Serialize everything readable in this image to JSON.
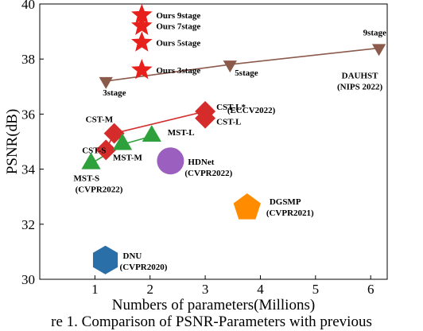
{
  "caption": "re 1. Comparison of PSNR-Parameters with previous",
  "chart_data": {
    "type": "scatter",
    "xlabel": "Numbers of parameters(Millions)",
    "ylabel": "PSNR(dB)",
    "xlim": [
      0,
      6.3
    ],
    "ylim": [
      30,
      40
    ],
    "xticks": [
      1,
      2,
      3,
      4,
      5,
      6
    ],
    "yticks": [
      30,
      32,
      34,
      36,
      38,
      40
    ],
    "grid": false,
    "colors": {
      "ours": "#e8201c",
      "dauhst": "#8b5a4b",
      "cst": "#d62b2b",
      "mst": "#2fa13c",
      "hdnet": "#9b5fc0",
      "dgsmp": "#ff8c00",
      "dnu": "#2a6fa8"
    },
    "series": [
      {
        "name": "Ours",
        "marker": "star",
        "color_key": "ours",
        "points": [
          {
            "x": 1.85,
            "y": 37.6,
            "label": "Ours 3stage"
          },
          {
            "x": 1.85,
            "y": 38.6,
            "label": "Ours 5stage"
          },
          {
            "x": 1.85,
            "y": 39.2,
            "label": "Ours 7stage"
          },
          {
            "x": 1.85,
            "y": 39.6,
            "label": "Ours 9stage"
          }
        ]
      },
      {
        "name": "DAUHST",
        "marker": "triangle-down",
        "color_key": "dauhst",
        "line": true,
        "points": [
          {
            "x": 1.2,
            "y": 37.2,
            "label": "3stage"
          },
          {
            "x": 3.45,
            "y": 37.8,
            "label": "5stage"
          },
          {
            "x": 6.15,
            "y": 38.4,
            "label": "9stage"
          }
        ],
        "group_label": [
          "DAUHST",
          "(NIPS 2022)"
        ]
      },
      {
        "name": "CST",
        "marker": "diamond",
        "color_key": "cst",
        "line": true,
        "points": [
          {
            "x": 1.2,
            "y": 34.7,
            "label": "CST-S"
          },
          {
            "x": 1.35,
            "y": 35.3,
            "label": "CST-M"
          },
          {
            "x": 3.0,
            "y": 35.85,
            "label": "CST-L"
          },
          {
            "x": 3.0,
            "y": 36.1,
            "label": "CST-L*"
          }
        ],
        "group_label": [
          "(ECCV2022)"
        ]
      },
      {
        "name": "MST",
        "marker": "triangle-up",
        "color_key": "mst",
        "line": true,
        "points": [
          {
            "x": 0.93,
            "y": 34.2,
            "label": "MST-S"
          },
          {
            "x": 1.5,
            "y": 34.9,
            "label": "MST-M"
          },
          {
            "x": 2.03,
            "y": 35.2,
            "label": "MST-L"
          }
        ],
        "group_label": [
          "(CVPR2022)"
        ]
      },
      {
        "name": "HDNet",
        "marker": "circle",
        "color_key": "hdnet",
        "points": [
          {
            "x": 2.37,
            "y": 34.3,
            "label": "HDNet",
            "sublabel": "(CVPR2022)"
          }
        ]
      },
      {
        "name": "DGSMP",
        "marker": "pentagon",
        "color_key": "dgsmp",
        "points": [
          {
            "x": 3.76,
            "y": 32.6,
            "label": "DGSMP",
            "sublabel": "(CVPR2021)"
          }
        ]
      },
      {
        "name": "DNU",
        "marker": "hexagon",
        "color_key": "dnu",
        "points": [
          {
            "x": 1.19,
            "y": 30.7,
            "label": "DNU",
            "sublabel": "(CVPR2020)"
          }
        ]
      }
    ]
  }
}
